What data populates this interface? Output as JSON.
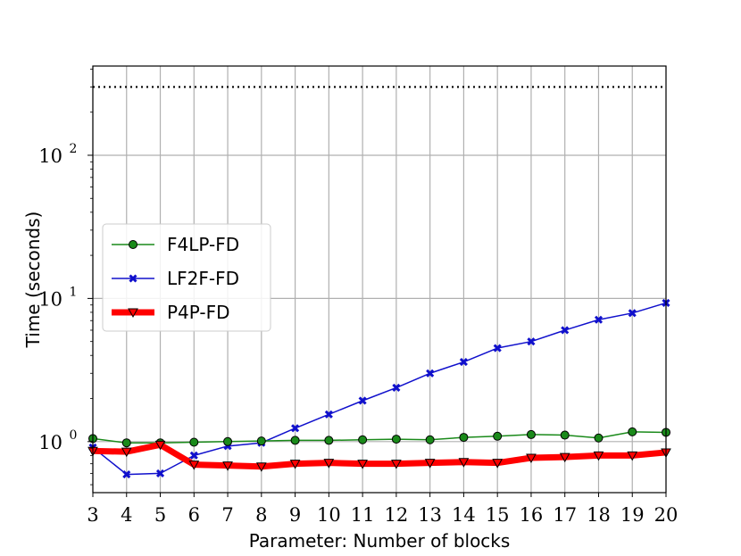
{
  "chart_data": {
    "type": "line",
    "xlabel": "Parameter: Number of blocks",
    "ylabel": "Time (seconds)",
    "x": [
      3,
      4,
      5,
      6,
      7,
      8,
      9,
      10,
      11,
      12,
      13,
      14,
      15,
      16,
      17,
      18,
      19,
      20
    ],
    "xlim": [
      3,
      20
    ],
    "ylim": [
      0.44,
      420
    ],
    "yscale": "log",
    "grid": true,
    "legend_position": "center-left",
    "y_ticks": [
      {
        "value": 1,
        "mantissa": "10",
        "exp": "0"
      },
      {
        "value": 10,
        "mantissa": "10",
        "exp": "1"
      },
      {
        "value": 100,
        "mantissa": "10",
        "exp": "2"
      }
    ],
    "reference_line": {
      "value": 300,
      "style": "dotted",
      "color": "#000000"
    },
    "series": [
      {
        "name": "F4LP-FD",
        "color": "#1a8a1a",
        "marker": "circle",
        "line_width": 1.5,
        "values": [
          1.05,
          0.98,
          0.98,
          0.99,
          1.0,
          1.01,
          1.02,
          1.02,
          1.03,
          1.04,
          1.03,
          1.07,
          1.09,
          1.12,
          1.11,
          1.06,
          1.17,
          1.16
        ]
      },
      {
        "name": "LF2F-FD",
        "color": "#1010cc",
        "marker": "x",
        "line_width": 1.5,
        "values": [
          0.91,
          0.59,
          0.6,
          0.8,
          0.93,
          0.98,
          1.24,
          1.55,
          1.93,
          2.38,
          3.0,
          3.6,
          4.5,
          5.0,
          6.0,
          7.1,
          7.9,
          9.3
        ]
      },
      {
        "name": "P4P-FD",
        "color": "#ff0000",
        "marker": "triangle-down",
        "line_width": 7,
        "values": [
          0.86,
          0.85,
          0.95,
          0.69,
          0.68,
          0.67,
          0.7,
          0.71,
          0.7,
          0.7,
          0.71,
          0.72,
          0.71,
          0.77,
          0.78,
          0.8,
          0.8,
          0.84
        ]
      }
    ]
  }
}
